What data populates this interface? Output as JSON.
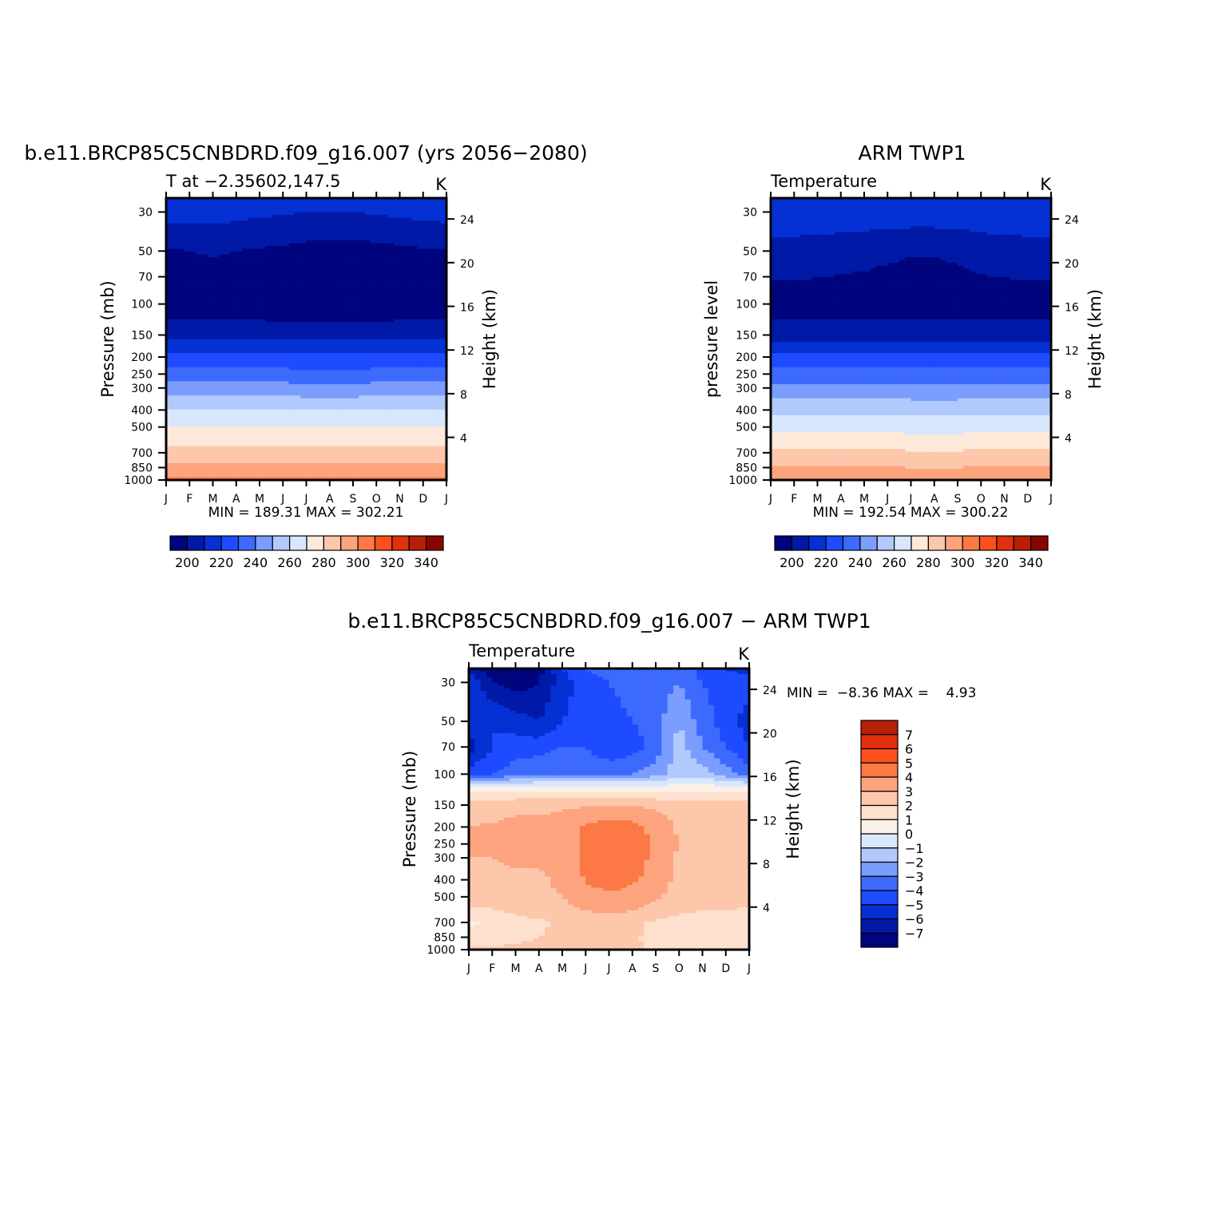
{
  "chart_data": [
    {
      "type": "heatmap",
      "title": "b.e11.BRCP85C5CNBDRD.f09_g16.007 (yrs 2056−2080)",
      "subtitle_left": "T at −2.35602,147.5",
      "subtitle_right": "K",
      "ylabel": "Pressure (mb)",
      "ylabel_right": "Height (km)",
      "stats": "MIN = 189.31 MAX = 302.21",
      "x_ticks": [
        "J",
        "F",
        "M",
        "A",
        "M",
        "J",
        "J",
        "A",
        "S",
        "O",
        "N",
        "D",
        "J"
      ],
      "y_ticks": [
        30,
        50,
        70,
        100,
        150,
        200,
        250,
        300,
        400,
        500,
        700,
        850,
        1000
      ],
      "y_ticks_right": [
        24,
        20,
        16,
        12,
        8,
        4
      ],
      "ylim": [
        1000,
        25
      ],
      "contour_levels": [
        190,
        200,
        210,
        220,
        230,
        240,
        250,
        260,
        270,
        280,
        290,
        300,
        310,
        320,
        330,
        340,
        350
      ],
      "colorbar_labels": [
        "200",
        "220",
        "240",
        "260",
        "280",
        "300",
        "320",
        "340"
      ],
      "months": [
        "J",
        "F",
        "M",
        "A",
        "M",
        "J",
        "J",
        "A",
        "S",
        "O",
        "N",
        "D",
        "J"
      ],
      "values_by_pressure": [
        {
          "pressure": 30,
          "values": [
            214,
            214,
            214,
            213,
            212,
            211,
            210,
            210,
            210,
            211,
            212,
            213,
            214
          ]
        },
        {
          "pressure": 50,
          "values": [
            199,
            200,
            201,
            200,
            199,
            198,
            197,
            196,
            196,
            197,
            198,
            199,
            199
          ]
        },
        {
          "pressure": 100,
          "values": [
            192,
            192,
            192,
            192,
            192,
            191,
            190,
            190,
            190,
            191,
            192,
            192,
            192
          ]
        },
        {
          "pressure": 150,
          "values": [
            207,
            207,
            207,
            207,
            207,
            207,
            207,
            207,
            207,
            207,
            207,
            207,
            207
          ]
        },
        {
          "pressure": 200,
          "values": [
            222,
            222,
            222,
            222,
            222,
            222,
            222,
            222,
            222,
            222,
            222,
            222,
            222
          ]
        },
        {
          "pressure": 250,
          "values": [
            234,
            234,
            234,
            234,
            234,
            234,
            233,
            233,
            233,
            234,
            234,
            234,
            234
          ]
        },
        {
          "pressure": 300,
          "values": [
            244,
            244,
            244,
            244,
            244,
            244,
            243,
            243,
            243,
            244,
            244,
            244,
            244
          ]
        },
        {
          "pressure": 400,
          "values": [
            261,
            261,
            261,
            261,
            261,
            261,
            260,
            260,
            260,
            261,
            261,
            261,
            261
          ]
        },
        {
          "pressure": 500,
          "values": [
            270,
            270,
            270,
            270,
            270,
            270,
            270,
            270,
            270,
            270,
            270,
            270,
            270
          ]
        },
        {
          "pressure": 700,
          "values": [
            284,
            284,
            284,
            284,
            284,
            284,
            284,
            284,
            284,
            284,
            284,
            284,
            284
          ]
        },
        {
          "pressure": 850,
          "values": [
            293,
            293,
            293,
            293,
            293,
            293,
            293,
            293,
            293,
            293,
            293,
            293,
            293
          ]
        },
        {
          "pressure": 1000,
          "values": [
            301,
            301,
            301,
            301,
            301,
            301,
            301,
            301,
            301,
            301,
            301,
            301,
            301
          ]
        }
      ]
    },
    {
      "type": "heatmap",
      "title": "ARM TWP1",
      "subtitle_left": "Temperature",
      "subtitle_right": "K",
      "ylabel": "pressure level",
      "ylabel_right": "Height (km)",
      "stats": "MIN = 192.54 MAX = 300.22",
      "x_ticks": [
        "J",
        "F",
        "M",
        "A",
        "M",
        "J",
        "J",
        "A",
        "S",
        "O",
        "N",
        "D",
        "J"
      ],
      "y_ticks": [
        30,
        50,
        70,
        100,
        150,
        200,
        250,
        300,
        400,
        500,
        700,
        850,
        1000
      ],
      "y_ticks_right": [
        24,
        20,
        16,
        12,
        8,
        4
      ],
      "ylim": [
        1000,
        25
      ],
      "contour_levels": [
        190,
        200,
        210,
        220,
        230,
        240,
        250,
        260,
        270,
        280,
        290,
        300,
        310,
        320,
        330,
        340,
        350
      ],
      "colorbar_labels": [
        "200",
        "220",
        "240",
        "260",
        "280",
        "300",
        "320",
        "340"
      ],
      "months": [
        "J",
        "F",
        "M",
        "A",
        "M",
        "J",
        "J",
        "A",
        "S",
        "O",
        "N",
        "D",
        "J"
      ],
      "values_by_pressure": [
        {
          "pressure": 30,
          "values": [
            217,
            217,
            217,
            217,
            217,
            216,
            216,
            216,
            216,
            217,
            217,
            217,
            217
          ]
        },
        {
          "pressure": 50,
          "values": [
            206,
            206,
            205,
            204,
            203,
            202,
            201,
            201,
            202,
            204,
            205,
            206,
            206
          ]
        },
        {
          "pressure": 100,
          "values": [
            195,
            195,
            195,
            195,
            195,
            194,
            193,
            193,
            194,
            195,
            195,
            195,
            195
          ]
        },
        {
          "pressure": 150,
          "values": [
            206,
            206,
            206,
            206,
            206,
            206,
            206,
            206,
            206,
            206,
            206,
            206,
            206
          ]
        },
        {
          "pressure": 200,
          "values": [
            222,
            222,
            222,
            222,
            222,
            222,
            222,
            222,
            222,
            222,
            222,
            222,
            222
          ]
        },
        {
          "pressure": 250,
          "values": [
            234,
            234,
            234,
            234,
            234,
            234,
            234,
            234,
            234,
            234,
            234,
            234,
            234
          ]
        },
        {
          "pressure": 300,
          "values": [
            243,
            243,
            243,
            243,
            243,
            243,
            242,
            242,
            242,
            243,
            243,
            243,
            243
          ]
        },
        {
          "pressure": 400,
          "values": [
            258,
            258,
            258,
            258,
            258,
            258,
            257,
            257,
            257,
            258,
            258,
            258,
            258
          ]
        },
        {
          "pressure": 500,
          "values": [
            267,
            267,
            267,
            267,
            267,
            267,
            266,
            266,
            266,
            267,
            267,
            267,
            267
          ]
        },
        {
          "pressure": 700,
          "values": [
            282,
            282,
            282,
            282,
            282,
            282,
            281,
            281,
            281,
            282,
            282,
            282,
            282
          ]
        },
        {
          "pressure": 850,
          "values": [
            291,
            291,
            291,
            291,
            291,
            291,
            290,
            290,
            290,
            291,
            291,
            291,
            291
          ]
        },
        {
          "pressure": 1000,
          "values": [
            297,
            297,
            297,
            297,
            297,
            297,
            296,
            296,
            296,
            297,
            297,
            297,
            297
          ]
        }
      ]
    },
    {
      "type": "heatmap",
      "title": "b.e11.BRCP85C5CNBDRD.f09_g16.007 − ARM TWP1",
      "subtitle_left": "Temperature",
      "subtitle_right": "K",
      "ylabel": "Pressure (mb)",
      "ylabel_right": "Height (km)",
      "stats": "MIN =  −8.36 MAX =    4.93",
      "x_ticks": [
        "J",
        "F",
        "M",
        "A",
        "M",
        "J",
        "J",
        "A",
        "S",
        "O",
        "N",
        "D",
        "J"
      ],
      "y_ticks": [
        30,
        50,
        70,
        100,
        150,
        200,
        250,
        300,
        400,
        500,
        700,
        850,
        1000
      ],
      "y_ticks_right": [
        24,
        20,
        16,
        12,
        8,
        4
      ],
      "ylim": [
        1000,
        25
      ],
      "contour_levels": [
        -8,
        -7,
        -6,
        -5,
        -4,
        -3,
        -2,
        -1,
        0,
        1,
        2,
        3,
        4,
        5,
        6,
        7,
        8
      ],
      "colorbar_labels": [
        "7",
        "6",
        "5",
        "4",
        "3",
        "2",
        "1",
        "0",
        "−1",
        "−2",
        "−3",
        "−4",
        "−5",
        "−6",
        "−7"
      ],
      "months": [
        "J",
        "F",
        "M",
        "A",
        "M",
        "J",
        "J",
        "A",
        "S",
        "O",
        "N",
        "D",
        "J"
      ],
      "values_by_pressure": [
        {
          "pressure": 25,
          "values": [
            -6.5,
            -7.5,
            -8.0,
            -7.5,
            -5.0,
            -4.0,
            -3.5,
            -3.5,
            -3.5,
            -3.0,
            -4.5,
            -5.0,
            -5.5
          ]
        },
        {
          "pressure": 30,
          "values": [
            -5.0,
            -7.0,
            -7.5,
            -7.0,
            -5.5,
            -4.5,
            -4.0,
            -3.5,
            -3.5,
            -3.0,
            -4.0,
            -4.5,
            -4.5
          ]
        },
        {
          "pressure": 50,
          "values": [
            -5.5,
            -5.0,
            -5.5,
            -6.0,
            -5.0,
            -4.5,
            -4.5,
            -4.0,
            -3.5,
            -2.0,
            -3.5,
            -4.5,
            -5.5
          ]
        },
        {
          "pressure": 70,
          "values": [
            -6.5,
            -5.0,
            -4.5,
            -4.5,
            -4.0,
            -4.0,
            -5.0,
            -4.5,
            -3.5,
            -1.5,
            -3.0,
            -4.0,
            -5.0
          ]
        },
        {
          "pressure": 100,
          "values": [
            -4.5,
            -4.0,
            -3.5,
            -3.0,
            -3.0,
            -3.0,
            -3.0,
            -3.0,
            -2.5,
            -1.5,
            -1.5,
            -2.5,
            -3.5
          ]
        },
        {
          "pressure": 120,
          "values": [
            0.5,
            0.5,
            0.5,
            0.5,
            0.5,
            0.5,
            0.5,
            0.5,
            0.5,
            0.5,
            0.5,
            0.5,
            0.5
          ]
        },
        {
          "pressure": 150,
          "values": [
            2.5,
            2.6,
            2.8,
            2.8,
            2.8,
            2.9,
            3.0,
            3.0,
            2.8,
            2.5,
            2.5,
            2.5,
            2.5
          ]
        },
        {
          "pressure": 200,
          "values": [
            3.0,
            3.1,
            3.2,
            3.2,
            3.5,
            4.2,
            4.5,
            4.4,
            3.6,
            2.9,
            2.8,
            2.8,
            3.0
          ]
        },
        {
          "pressure": 250,
          "values": [
            3.0,
            3.1,
            3.2,
            3.2,
            3.5,
            4.3,
            4.7,
            4.8,
            3.8,
            2.9,
            2.8,
            2.8,
            3.0
          ]
        },
        {
          "pressure": 300,
          "values": [
            3.0,
            3.0,
            3.2,
            3.2,
            3.4,
            4.2,
            4.8,
            4.7,
            3.6,
            2.9,
            2.8,
            2.8,
            3.0
          ]
        },
        {
          "pressure": 400,
          "values": [
            2.5,
            2.6,
            2.8,
            2.8,
            3.2,
            4.1,
            4.5,
            4.2,
            3.5,
            2.8,
            2.1,
            2.5,
            2.5
          ]
        },
        {
          "pressure": 500,
          "values": [
            2.5,
            2.5,
            2.6,
            2.8,
            3.0,
            3.5,
            3.8,
            3.5,
            3.2,
            2.5,
            2.3,
            2.5,
            2.5
          ]
        },
        {
          "pressure": 600,
          "values": [
            1.8,
            1.9,
            2.2,
            2.5,
            2.7,
            3.0,
            3.2,
            3.0,
            2.6,
            2.2,
            2.0,
            2.0,
            1.8
          ]
        },
        {
          "pressure": 700,
          "values": [
            0.8,
            1.2,
            1.6,
            1.8,
            2.2,
            2.6,
            2.6,
            2.2,
            1.8,
            1.5,
            1.3,
            1.2,
            1.0
          ]
        },
        {
          "pressure": 850,
          "values": [
            1.5,
            1.6,
            1.8,
            2.0,
            2.2,
            2.3,
            2.3,
            2.1,
            1.8,
            1.6,
            1.0,
            1.5,
            1.5
          ]
        },
        {
          "pressure": 1000,
          "values": [
            2.1,
            2.1,
            2.2,
            2.2,
            2.2,
            2.2,
            2.2,
            2.1,
            1.9,
            1.5,
            1.2,
            1.5,
            2.0
          ]
        }
      ]
    }
  ],
  "colors": {
    "abs_palette": [
      "#00047d",
      "#0019a6",
      "#0530d4",
      "#1e4bff",
      "#3d6afd",
      "#7b9dfd",
      "#b2c9fd",
      "#d8e7fd",
      "#fde9d9",
      "#fdc7ab",
      "#fda47f",
      "#fc7844",
      "#fb501e",
      "#e0310c",
      "#b71f07",
      "#8a0500"
    ],
    "diff_palette": [
      "#00047d",
      "#0019a6",
      "#0530d4",
      "#1e4bff",
      "#3d6afd",
      "#7b9dfd",
      "#b2c9fd",
      "#d8e7fd",
      "#fdf1e7",
      "#fde0ce",
      "#fdc7ab",
      "#fda47f",
      "#fc7844",
      "#fb501e",
      "#e0310c",
      "#b71f07"
    ]
  }
}
